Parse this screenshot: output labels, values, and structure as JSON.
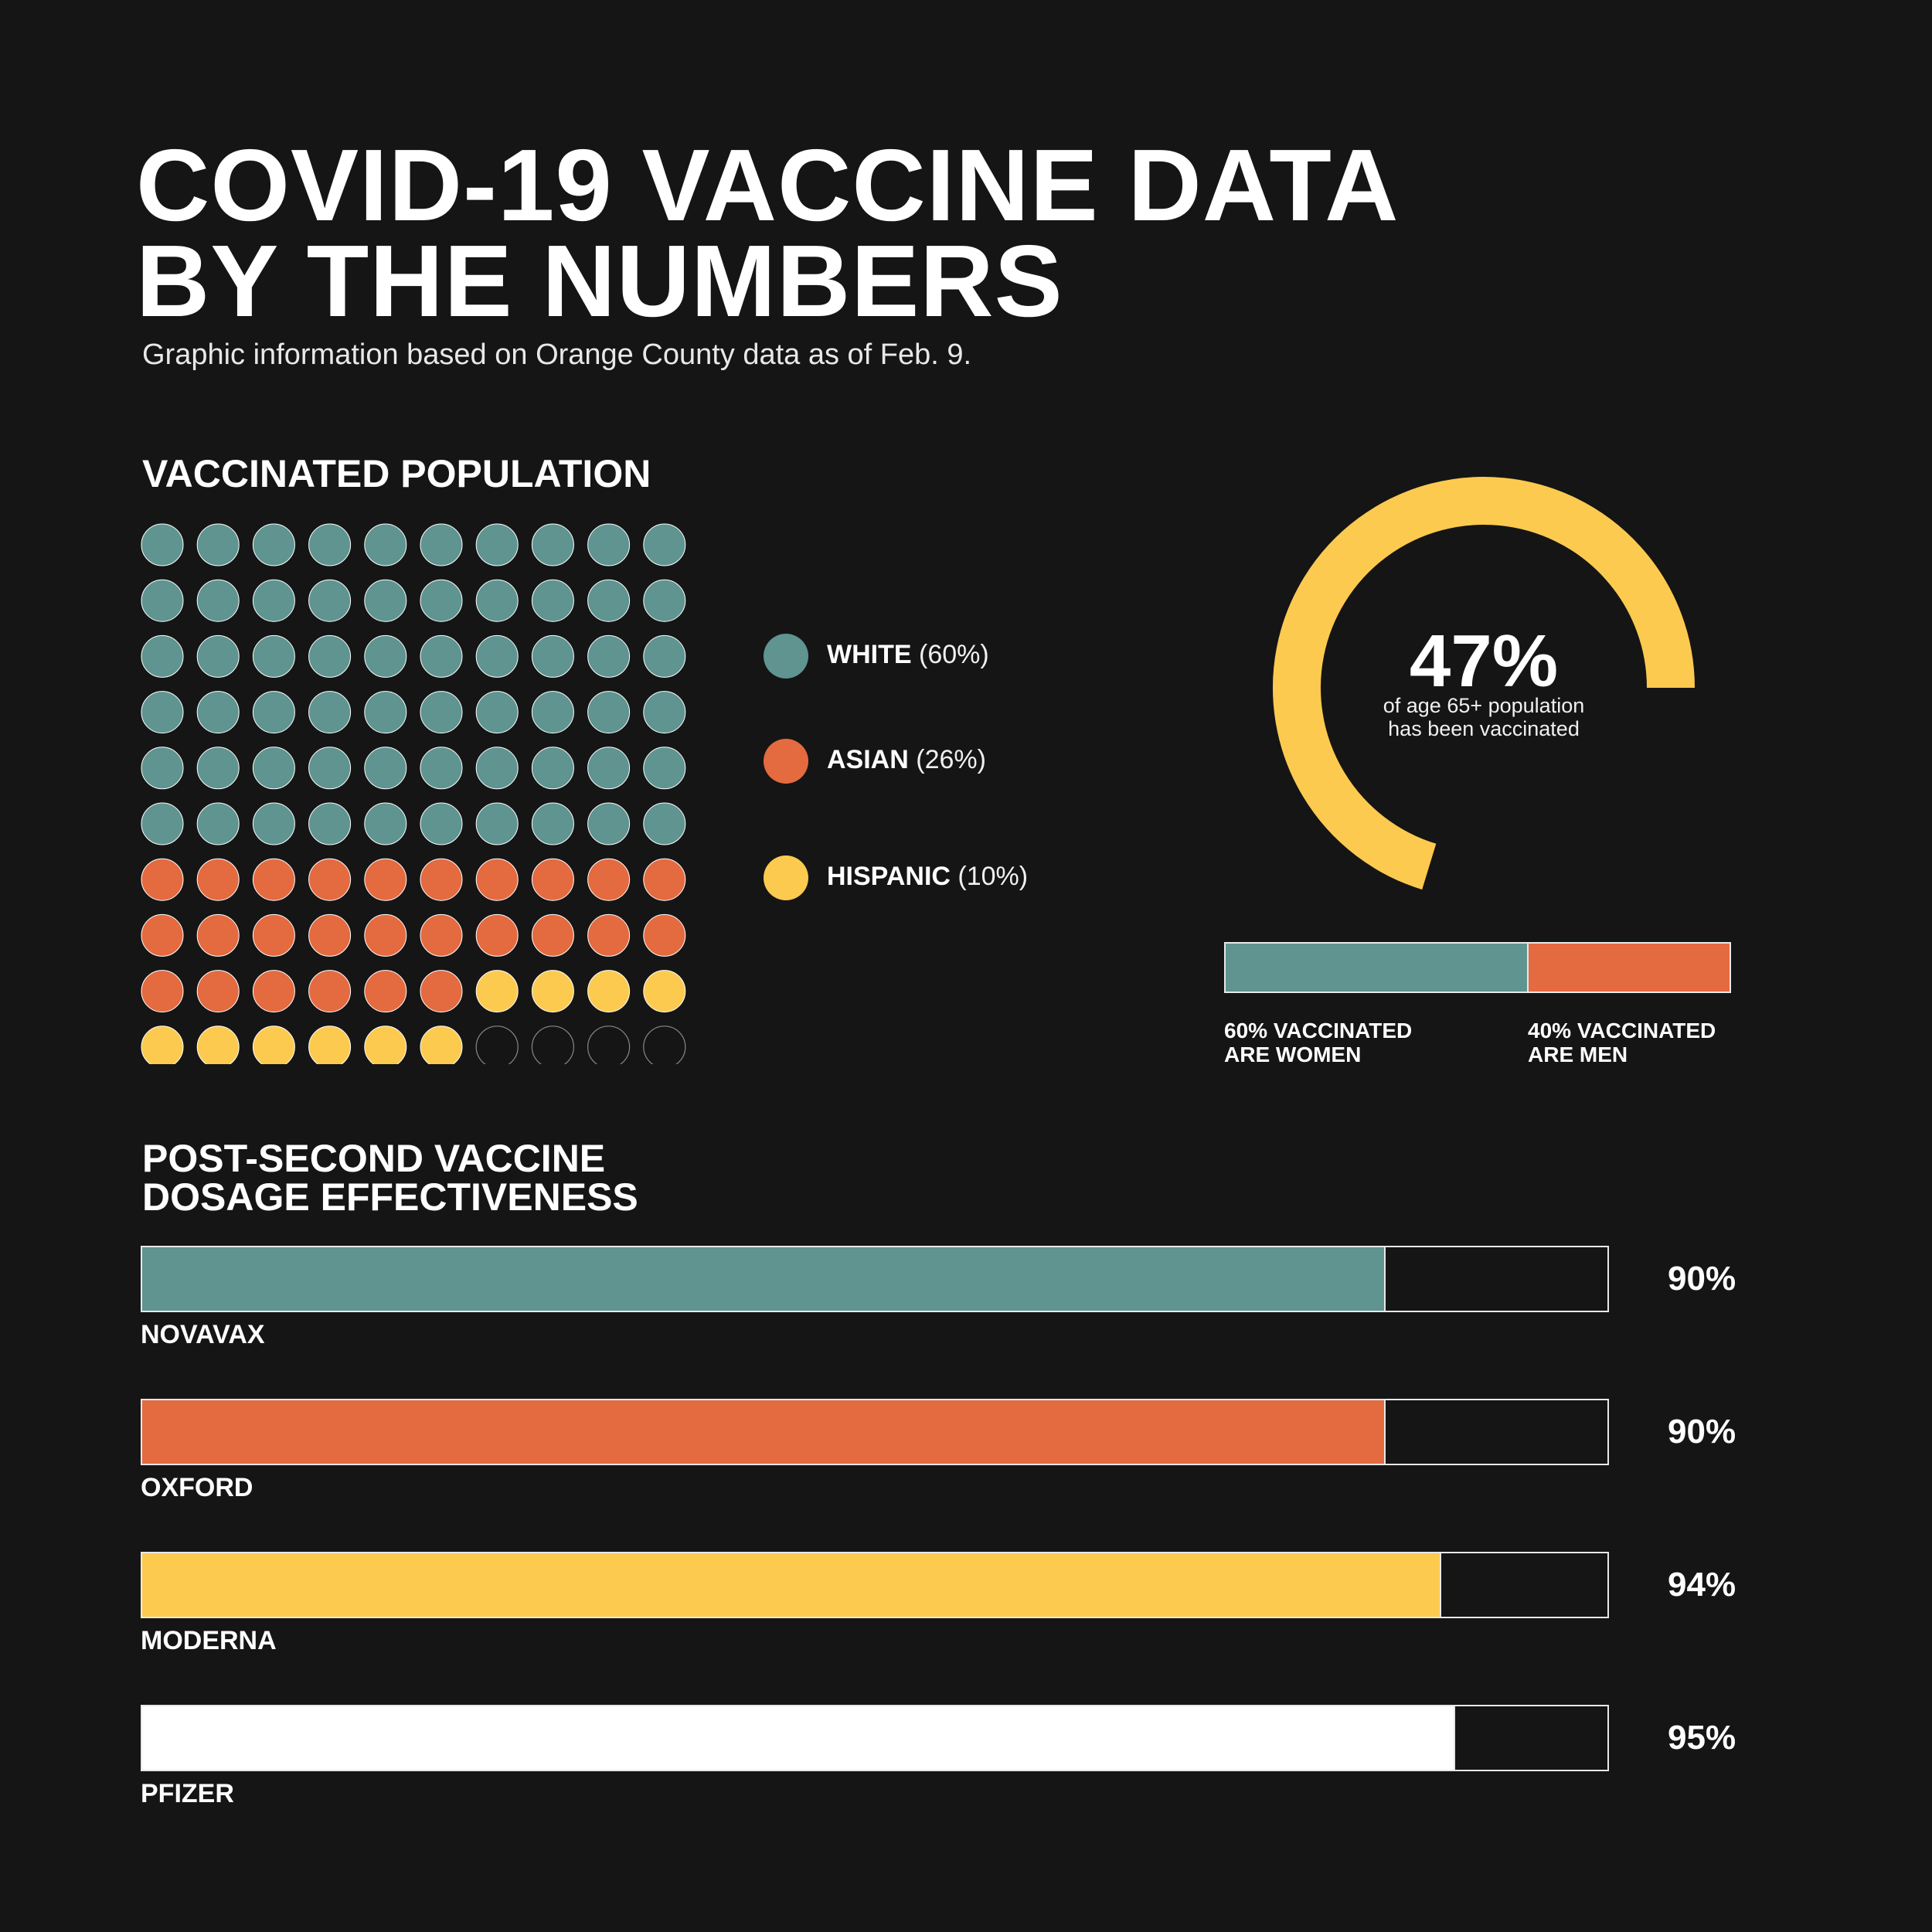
{
  "header": {
    "title_line1": "COVID-19 VACCINE DATA",
    "title_line2": "BY THE NUMBERS",
    "subtitle": "Graphic information based on Orange County data as of Feb. 9."
  },
  "colors": {
    "background": "#151515",
    "teal": "#5f9490",
    "orange": "#e46a40",
    "yellow": "#fdca50",
    "white": "#ffffff"
  },
  "chart_data": [
    {
      "type": "waffle",
      "title": "VACCINATED POPULATION",
      "total_cells": 100,
      "categories": [
        "WHITE",
        "ASIAN",
        "HISPANIC"
      ],
      "values": [
        60,
        26,
        10
      ],
      "value_labels": [
        "(60%)",
        "(26%)",
        "(10%)"
      ],
      "colors": [
        "#5f9490",
        "#e46a40",
        "#fdca50"
      ]
    },
    {
      "type": "pie",
      "style": "donut-gauge",
      "value": 47,
      "value_label": "47%",
      "caption_line1": "of age 65+ population",
      "caption_line2": "has been vaccinated",
      "color": "#fdca50"
    },
    {
      "type": "bar",
      "style": "stacked-horizontal",
      "categories": [
        "WOMEN",
        "MEN"
      ],
      "values": [
        60,
        40
      ],
      "colors": [
        "#5f9490",
        "#e46a40"
      ],
      "labels": [
        {
          "line1": "60% VACCINATED",
          "line2": "ARE WOMEN"
        },
        {
          "line1": "40% VACCINATED",
          "line2": "ARE MEN"
        }
      ]
    },
    {
      "type": "bar",
      "style": "horizontal",
      "title_line1": "POST-SECOND VACCINE",
      "title_line2": "DOSAGE EFFECTIVENESS",
      "xlim": [
        0,
        100
      ],
      "categories": [
        "NOVAVAX",
        "OXFORD",
        "MODERNA",
        "PFIZER"
      ],
      "values": [
        90,
        90,
        94,
        95
      ],
      "value_labels": [
        "90%",
        "90%",
        "94%",
        "95%"
      ],
      "colors": [
        "#5f9490",
        "#e46a40",
        "#fdca50",
        "#ffffff"
      ]
    }
  ]
}
